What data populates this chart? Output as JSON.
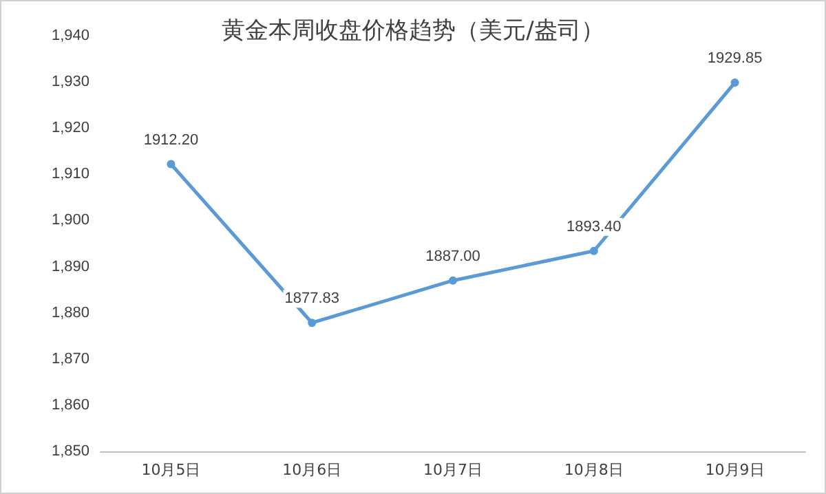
{
  "chart_data": {
    "type": "line",
    "title": "黄金本周收盘价格趋势（美元/盎司）",
    "categories": [
      "10月5日",
      "10月6日",
      "10月7日",
      "10月8日",
      "10月9日"
    ],
    "series": [
      {
        "color": "#5b9bd5",
        "values": [
          1912.2,
          1877.83,
          1887.0,
          1893.4,
          1929.85
        ],
        "value_labels": [
          "1912.20",
          "1877.83",
          "1887.00",
          "1893.40",
          "1929.85"
        ]
      }
    ],
    "ylim": [
      1850,
      1940
    ],
    "yticks": [
      {
        "value": 1850,
        "label": "1,850"
      },
      {
        "value": 1860,
        "label": "1,860"
      },
      {
        "value": 1870,
        "label": "1,870"
      },
      {
        "value": 1880,
        "label": "1,880"
      },
      {
        "value": 1890,
        "label": "1,890"
      },
      {
        "value": 1900,
        "label": "1,900"
      },
      {
        "value": 1910,
        "label": "1,910"
      },
      {
        "value": 1920,
        "label": "1,920"
      },
      {
        "value": 1930,
        "label": "1,930"
      },
      {
        "value": 1940,
        "label": "1,940"
      }
    ],
    "marker": "circle",
    "line_style": "solid",
    "grid": false
  }
}
